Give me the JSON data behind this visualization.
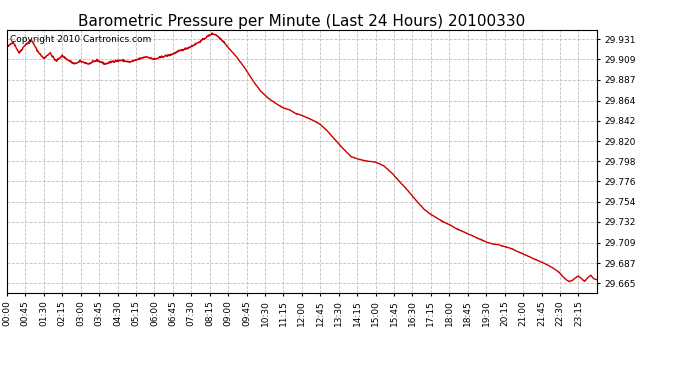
{
  "title": "Barometric Pressure per Minute (Last 24 Hours) 20100330",
  "copyright_text": "Copyright 2010 Cartronics.com",
  "line_color": "#cc0000",
  "bg_color": "#ffffff",
  "plot_bg_color": "#ffffff",
  "grid_color": "#c0c0c0",
  "yticks": [
    29.665,
    29.687,
    29.709,
    29.732,
    29.754,
    29.776,
    29.798,
    29.82,
    29.842,
    29.864,
    29.887,
    29.909,
    29.931
  ],
  "ylim": [
    29.655,
    29.941
  ],
  "xtick_labels": [
    "00:00",
    "00:45",
    "01:30",
    "02:15",
    "03:00",
    "03:45",
    "04:30",
    "05:15",
    "06:00",
    "06:45",
    "07:30",
    "08:15",
    "09:00",
    "09:45",
    "10:30",
    "11:15",
    "12:00",
    "12:45",
    "13:30",
    "14:15",
    "15:00",
    "15:45",
    "16:30",
    "17:15",
    "18:00",
    "18:45",
    "19:30",
    "20:15",
    "21:00",
    "21:45",
    "22:30",
    "23:15"
  ],
  "title_fontsize": 11,
  "tick_fontsize": 6.5,
  "copyright_fontsize": 6.5,
  "line_width": 1.0
}
